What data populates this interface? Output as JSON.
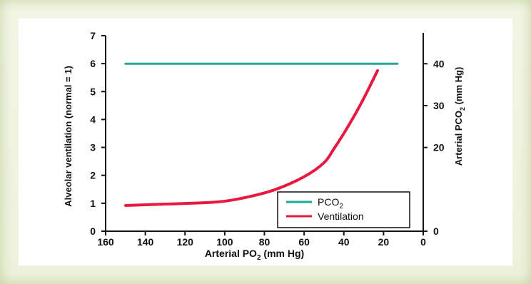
{
  "chart_data": {
    "type": "line",
    "x_axis": {
      "label": "Arterial PO",
      "label_sub": "2",
      "label_tail": " (mm Hg)",
      "range": [
        160,
        0
      ],
      "reversed": true,
      "ticks": [
        160,
        140,
        120,
        100,
        80,
        60,
        40,
        20,
        0
      ]
    },
    "y_axis_left": {
      "label": "Alveolar ventilation (normal = 1)",
      "range": [
        0,
        7
      ],
      "ticks": [
        0,
        1,
        2,
        3,
        4,
        5,
        6,
        7
      ]
    },
    "y_axis_right": {
      "label": "Arterial PCO",
      "label_sub": "2",
      "label_tail": " (mm Hg)",
      "range": [
        0,
        46.7
      ],
      "ticks": [
        0,
        20,
        30,
        40
      ]
    },
    "series": [
      {
        "name": "PCO",
        "name_sub": "2",
        "color": "#1fa99a",
        "axis": "right",
        "x": [
          150,
          13
        ],
        "y": [
          40,
          40
        ]
      },
      {
        "name": "Ventilation",
        "color": "#e8193f",
        "axis": "left",
        "x": [
          150,
          130,
          105,
          90,
          75,
          60,
          50,
          45,
          40,
          35,
          30,
          23
        ],
        "y": [
          0.92,
          0.97,
          1.04,
          1.2,
          1.48,
          1.95,
          2.45,
          2.95,
          3.5,
          4.1,
          4.75,
          5.75
        ]
      }
    ],
    "legend": {
      "position": "bottom-right"
    },
    "grid": false
  }
}
